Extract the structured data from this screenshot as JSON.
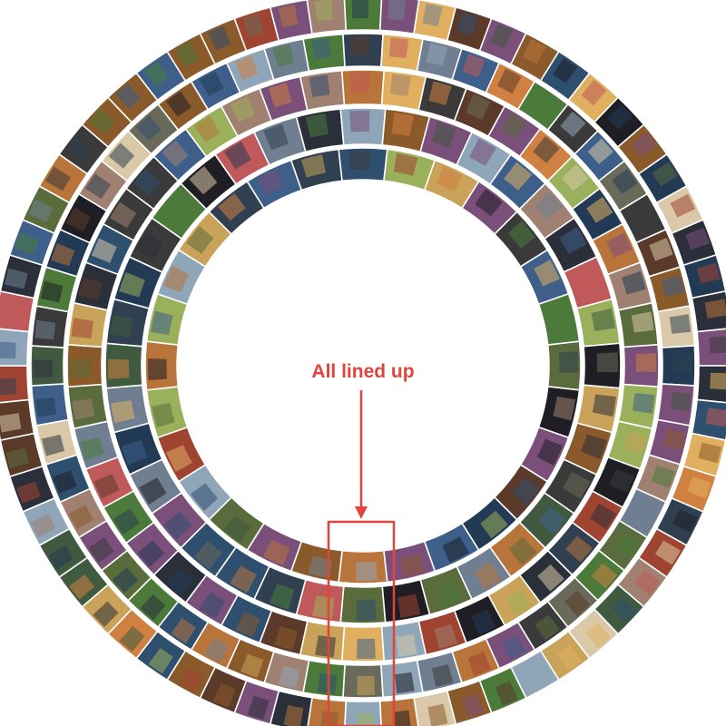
{
  "annotation": {
    "label": "All lined up",
    "color": "#e2443b"
  },
  "mosaic": {
    "description_kind": "circular photo mosaic of thumbnail images arranged in concentric rings",
    "ring_count": 5,
    "thumbnails_per_ring": [
      28,
      36,
      44,
      52,
      62
    ],
    "ring_separator_color": "#ffffff",
    "background_color": "#ffffff",
    "thumbnail_palette": [
      "#2b2f3a",
      "#5a6b3c",
      "#8b5a2b",
      "#3d5f8a",
      "#c9a35a",
      "#1e1e24",
      "#6f7f91",
      "#a04432",
      "#4b7a3a",
      "#d9c9a8",
      "#2f4f6f",
      "#7a4f7a",
      "#b8743a",
      "#3a3a3a",
      "#8fa5b8",
      "#5b3a2a",
      "#9ab05a",
      "#c05a5a",
      "#233a55",
      "#e0b060",
      "#6a6a5a",
      "#405a40",
      "#a08070",
      "#304050",
      "#d08040"
    ]
  }
}
